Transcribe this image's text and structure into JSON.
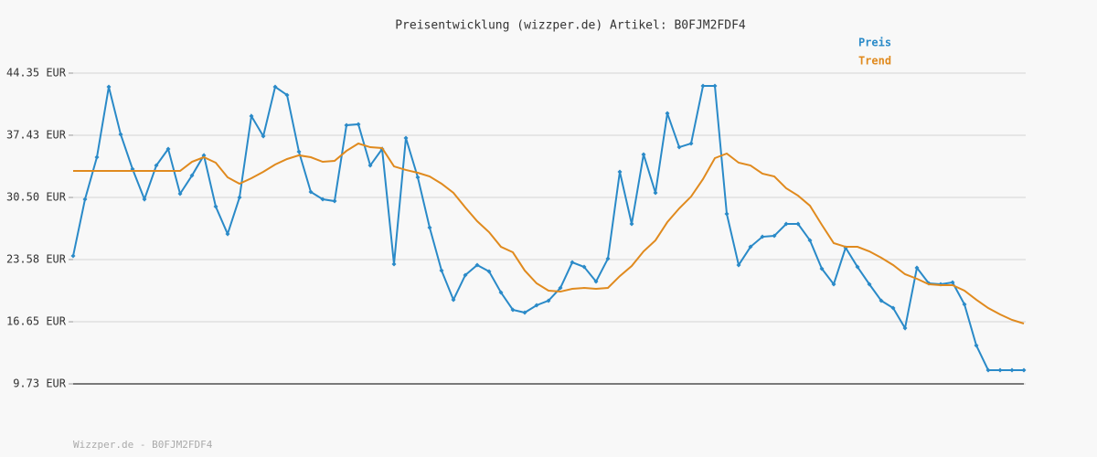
{
  "chart_data": {
    "type": "line",
    "title": "Preisentwicklung (wizzper.de) Artikel: B0FJM2FDF4",
    "footer": "Wizzper.de - B0FJM2FDF4",
    "legend": "top-right",
    "grid": true,
    "ylim": [
      9.73,
      44.35
    ],
    "yticks": [
      {
        "value": 9.73,
        "label": "9.73 EUR"
      },
      {
        "value": 16.65,
        "label": "16.65 EUR"
      },
      {
        "value": 23.58,
        "label": "23.58 EUR"
      },
      {
        "value": 30.5,
        "label": "30.50 EUR"
      },
      {
        "value": 37.43,
        "label": "37.43 EUR"
      },
      {
        "value": 44.35,
        "label": "44.35 EUR"
      }
    ],
    "categories": [
      null,
      null,
      null,
      null,
      null,
      null,
      null,
      null,
      null,
      null,
      null,
      null,
      null,
      null,
      null,
      null,
      null,
      null,
      null,
      null,
      null,
      null,
      null,
      null,
      null,
      null,
      null,
      null,
      null,
      null,
      null,
      null,
      null,
      null,
      null,
      null,
      null,
      null,
      null,
      null,
      null,
      null,
      null,
      null,
      null,
      null,
      null,
      null,
      null,
      null,
      null,
      null,
      null,
      null,
      null,
      null,
      null,
      null,
      null,
      null,
      null,
      null,
      null,
      null,
      null,
      null,
      null,
      null,
      null,
      null,
      null,
      null,
      null,
      null,
      null,
      null,
      null,
      null,
      null,
      null,
      null
    ],
    "series": [
      {
        "name": "Preis",
        "color": "#2a8ac8",
        "markers": true,
        "values": [
          23.98,
          30.3,
          34.98,
          42.82,
          37.53,
          33.66,
          30.3,
          34.06,
          35.9,
          30.91,
          32.94,
          35.19,
          29.48,
          26.43,
          30.5,
          39.56,
          37.32,
          42.82,
          41.91,
          35.59,
          31.11,
          30.3,
          30.09,
          38.55,
          38.65,
          34.06,
          35.9,
          23.07,
          37.12,
          32.74,
          27.14,
          22.36,
          19.1,
          21.85,
          22.97,
          22.25,
          19.91,
          17.98,
          17.67,
          18.49,
          19.0,
          20.42,
          23.27,
          22.76,
          21.13,
          23.68,
          33.35,
          27.55,
          35.29,
          31.01,
          39.87,
          36.1,
          36.51,
          42.92,
          42.92,
          28.67,
          22.97,
          25.0,
          26.12,
          26.22,
          27.55,
          27.55,
          25.72,
          22.56,
          20.83,
          24.9,
          22.76,
          20.83,
          19.0,
          18.18,
          15.94,
          22.66,
          20.93,
          20.83,
          21.03,
          18.59,
          14.01,
          11.26,
          11.26,
          11.26,
          11.26
        ]
      },
      {
        "name": "Trend",
        "color": "#e08a1e",
        "markers": false,
        "values": [
          33.45,
          33.45,
          33.45,
          33.45,
          33.45,
          33.45,
          33.45,
          33.45,
          33.45,
          33.45,
          34.47,
          34.98,
          34.37,
          32.74,
          32.03,
          32.64,
          33.35,
          34.17,
          34.78,
          35.19,
          34.98,
          34.47,
          34.57,
          35.69,
          36.51,
          36.1,
          36.0,
          33.96,
          33.56,
          33.25,
          32.84,
          32.03,
          31.01,
          29.38,
          27.85,
          26.63,
          25.0,
          24.39,
          22.36,
          20.93,
          20.12,
          20.01,
          20.32,
          20.42,
          20.32,
          20.42,
          21.74,
          22.86,
          24.49,
          25.72,
          27.75,
          29.28,
          30.6,
          32.54,
          34.88,
          35.39,
          34.37,
          34.06,
          33.15,
          32.84,
          31.52,
          30.7,
          29.58,
          27.45,
          25.41,
          25.0,
          25.0,
          24.49,
          23.78,
          22.97,
          21.95,
          21.44,
          20.83,
          20.73,
          20.73,
          20.12,
          19.1,
          18.18,
          17.47,
          16.86,
          16.45
        ]
      }
    ]
  }
}
